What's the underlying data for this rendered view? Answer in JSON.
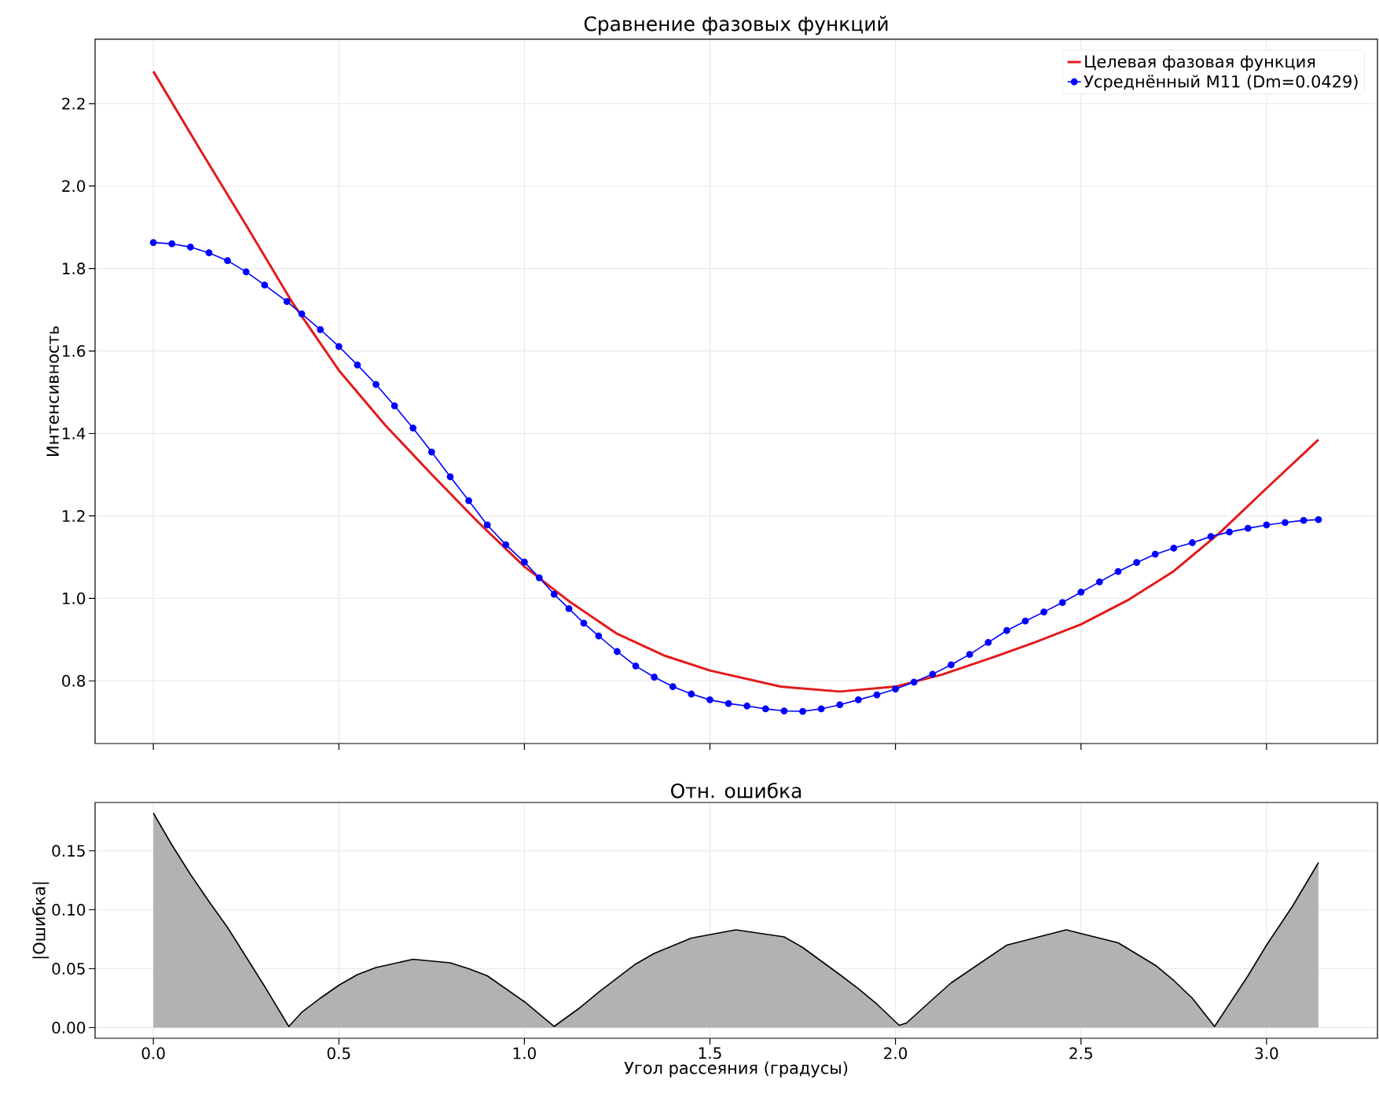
{
  "chart_data": [
    {
      "type": "line",
      "title": "Сравнение фазовых функций",
      "ylabel": "Интенсивность",
      "xlim": [
        -0.157,
        3.299
      ],
      "ylim": [
        0.648,
        2.356
      ],
      "xticks": [
        {
          "value": 0,
          "label": null
        },
        {
          "value": 0.5,
          "label": null
        },
        {
          "value": 1,
          "label": null
        },
        {
          "value": 1.5,
          "label": null
        },
        {
          "value": 2,
          "label": null
        },
        {
          "value": 2.5,
          "label": null
        },
        {
          "value": 3,
          "label": null
        }
      ],
      "yticks": [
        0.8,
        {
          "value": 1,
          "label": "1.0"
        },
        1.2,
        1.4,
        1.6,
        1.8,
        {
          "value": 2,
          "label": "2.0"
        },
        2.2
      ],
      "tick_labels": "y",
      "grid": true,
      "legend": "top right",
      "series": [
        {
          "name": "Целевая фазовая функция",
          "color": "#e31a1c",
          "marker": "none",
          "x": [
            0,
            0.125,
            0.25,
            0.375,
            0.5,
            0.625,
            0.75,
            0.875,
            1.0,
            1.125,
            1.25,
            1.375,
            1.5,
            1.69,
            1.85,
            2.0,
            2.125,
            2.25,
            2.375,
            2.5,
            2.625,
            2.75,
            2.875,
            3.0,
            3.14
          ],
          "values": [
            2.278,
            2.09,
            1.905,
            1.717,
            1.553,
            1.42,
            1.301,
            1.185,
            1.077,
            0.99,
            0.914,
            0.862,
            0.825,
            0.786,
            0.774,
            0.786,
            0.815,
            0.853,
            0.893,
            0.937,
            0.995,
            1.066,
            1.16,
            1.267,
            1.385
          ]
        },
        {
          "name": "Усреднённый M11 (Dm=0.0429)",
          "color": "#0000ff",
          "marker": "circle",
          "x": [
            0,
            0.05,
            0.1,
            0.15,
            0.2,
            0.25,
            0.3,
            0.36,
            0.4,
            0.45,
            0.5,
            0.55,
            0.6,
            0.65,
            0.7,
            0.75,
            0.8,
            0.85,
            0.9,
            0.95,
            1.0,
            1.04,
            1.08,
            1.12,
            1.16,
            1.2,
            1.25,
            1.3,
            1.35,
            1.4,
            1.45,
            1.5,
            1.55,
            1.6,
            1.65,
            1.7,
            1.75,
            1.8,
            1.85,
            1.9,
            1.95,
            2.0,
            2.05,
            2.1,
            2.15,
            2.2,
            2.25,
            2.3,
            2.35,
            2.4,
            2.45,
            2.5,
            2.55,
            2.6,
            2.65,
            2.7,
            2.75,
            2.8,
            2.85,
            2.9,
            2.95,
            3.0,
            3.05,
            3.1,
            3.14
          ],
          "values": [
            1.863,
            1.86,
            1.852,
            1.838,
            1.819,
            1.792,
            1.76,
            1.72,
            1.69,
            1.652,
            1.611,
            1.566,
            1.519,
            1.467,
            1.413,
            1.355,
            1.295,
            1.237,
            1.178,
            1.13,
            1.088,
            1.05,
            1.01,
            0.975,
            0.94,
            0.909,
            0.871,
            0.836,
            0.809,
            0.786,
            0.768,
            0.754,
            0.745,
            0.739,
            0.732,
            0.727,
            0.726,
            0.732,
            0.742,
            0.754,
            0.766,
            0.78,
            0.797,
            0.816,
            0.839,
            0.864,
            0.893,
            0.922,
            0.945,
            0.967,
            0.99,
            1.015,
            1.04,
            1.065,
            1.087,
            1.107,
            1.122,
            1.135,
            1.15,
            1.161,
            1.17,
            1.178,
            1.184,
            1.189,
            1.191
          ]
        }
      ]
    },
    {
      "type": "area",
      "title": "Отн. ошибка",
      "xlabel": "Угол рассеяния (градусы)",
      "ylabel": "|Ошибка|",
      "color": "#b2b2b2",
      "xlim": [
        -0.157,
        3.299
      ],
      "ylim": [
        -0.009,
        0.191
      ],
      "xticks": [
        {
          "value": 0,
          "label": "0.0"
        },
        {
          "value": 0.5,
          "label": "0.5"
        },
        {
          "value": 1,
          "label": "1.0"
        },
        {
          "value": 1.5,
          "label": "1.5"
        },
        {
          "value": 2,
          "label": "2.0"
        },
        {
          "value": 2.5,
          "label": "2.5"
        },
        {
          "value": 3,
          "label": "3.0"
        }
      ],
      "yticks": [
        {
          "value": 0,
          "label": "0.00"
        },
        {
          "value": 0.05,
          "label": "0.05"
        },
        {
          "value": 0.1,
          "label": "0.10"
        },
        {
          "value": 0.15,
          "label": "0.15"
        }
      ],
      "grid": true,
      "x": [
        0,
        0.05,
        0.1,
        0.15,
        0.2,
        0.25,
        0.3,
        0.365,
        0.4,
        0.45,
        0.5,
        0.55,
        0.6,
        0.7,
        0.8,
        0.85,
        0.9,
        1.0,
        1.08,
        1.15,
        1.2,
        1.3,
        1.35,
        1.45,
        1.57,
        1.7,
        1.75,
        1.85,
        1.9,
        1.95,
        2.01,
        2.03,
        2.1,
        2.15,
        2.3,
        2.46,
        2.6,
        2.7,
        2.75,
        2.8,
        2.86,
        2.95,
        3.0,
        3.07,
        3.14
      ],
      "values": [
        0.182,
        0.155,
        0.13,
        0.107,
        0.085,
        0.06,
        0.035,
        0.001,
        0.013,
        0.025,
        0.036,
        0.045,
        0.051,
        0.058,
        0.055,
        0.05,
        0.044,
        0.022,
        0.001,
        0.017,
        0.03,
        0.054,
        0.063,
        0.076,
        0.083,
        0.077,
        0.068,
        0.045,
        0.033,
        0.02,
        0.002,
        0.004,
        0.024,
        0.038,
        0.07,
        0.083,
        0.072,
        0.053,
        0.04,
        0.025,
        0.001,
        0.044,
        0.07,
        0.103,
        0.14
      ]
    }
  ]
}
